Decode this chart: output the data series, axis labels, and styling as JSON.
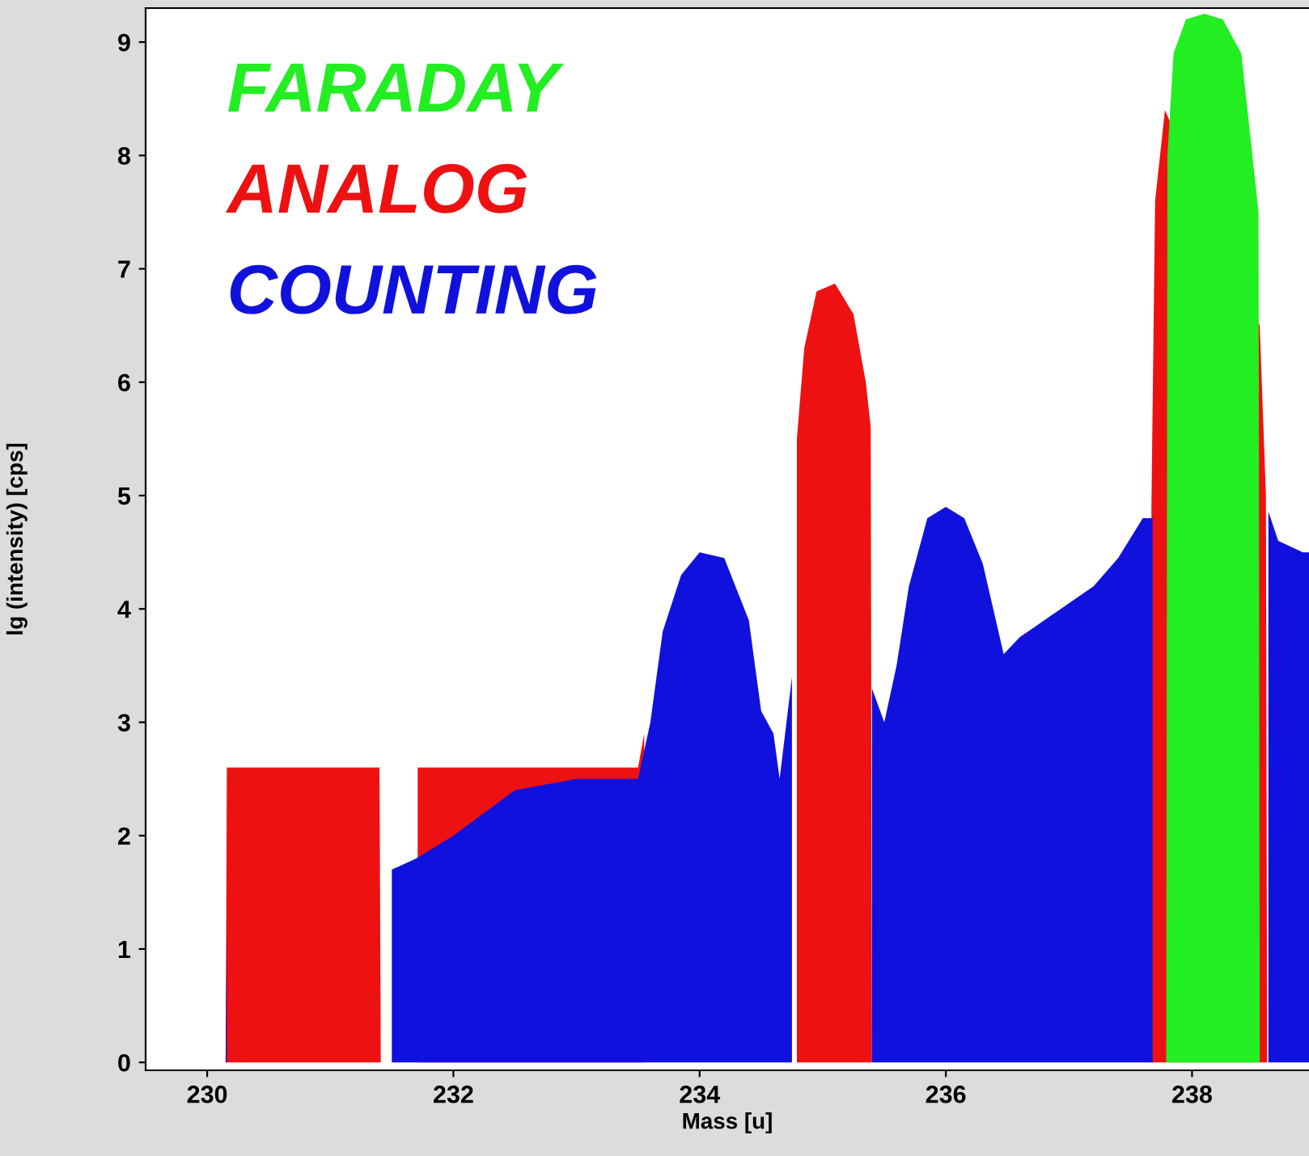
{
  "chart_data": {
    "type": "area",
    "xlabel": "Mass [u]",
    "ylabel": "lg (intensity) [cps]",
    "xlim": [
      229.5,
      238.95
    ],
    "ylim": [
      -0.07,
      9.3
    ],
    "xticks": [
      230,
      232,
      234,
      236,
      238
    ],
    "yticks": [
      0,
      1,
      2,
      3,
      4,
      5,
      6,
      7,
      8,
      9
    ],
    "grid": false,
    "legend": "top left",
    "series": [
      {
        "name": "FARADAY",
        "color": "#22ee22",
        "x": [
          237.79,
          237.8,
          237.85,
          237.95,
          238.1,
          238.25,
          238.4,
          238.54,
          238.55
        ],
        "values": [
          0,
          8.0,
          8.9,
          9.2,
          9.25,
          9.2,
          8.9,
          7.5,
          0
        ]
      },
      {
        "name": "ANALOG",
        "color": "#ee1111",
        "x": [
          230.15,
          230.16,
          231.4,
          231.41,
          231.7,
          231.71,
          233.5,
          233.55,
          233.56,
          234.78,
          234.79,
          234.85,
          234.95,
          235.1,
          235.25,
          235.35,
          235.39,
          235.4,
          237.66,
          237.67,
          237.7,
          237.78,
          238.55,
          238.6,
          238.61
        ],
        "values": [
          0,
          2.6,
          2.6,
          0,
          null,
          2.6,
          2.6,
          2.9,
          0,
          null,
          5.5,
          6.3,
          6.8,
          6.87,
          6.6,
          6.0,
          5.6,
          0,
          null,
          4.9,
          7.6,
          8.4,
          6.5,
          5.0,
          0
        ]
      },
      {
        "name": "COUNTING",
        "color": "#1111dd",
        "x": [
          230.15,
          230.16,
          230.5,
          231.0,
          231.5,
          231.7,
          232.0,
          232.5,
          233.0,
          233.5,
          233.6,
          233.7,
          233.85,
          234.0,
          234.2,
          234.4,
          234.5,
          234.6,
          234.65,
          234.75,
          235.0,
          235.4,
          235.5,
          235.6,
          235.7,
          235.85,
          236.0,
          236.15,
          236.3,
          236.47,
          236.6,
          236.8,
          237.0,
          237.2,
          237.4,
          237.6,
          237.68,
          238.0,
          238.62,
          238.7,
          238.9,
          238.95
        ],
        "values": [
          0,
          1.3,
          null,
          null,
          1.7,
          1.8,
          2.0,
          2.4,
          2.5,
          2.5,
          3.0,
          3.8,
          4.3,
          4.5,
          4.45,
          3.9,
          3.1,
          2.9,
          2.5,
          3.4,
          null,
          3.3,
          3.0,
          3.5,
          4.2,
          4.8,
          4.9,
          4.8,
          4.4,
          3.6,
          3.75,
          3.9,
          4.05,
          4.2,
          4.45,
          4.8,
          4.8,
          null,
          4.86,
          4.6,
          4.5,
          4.5
        ]
      }
    ]
  }
}
